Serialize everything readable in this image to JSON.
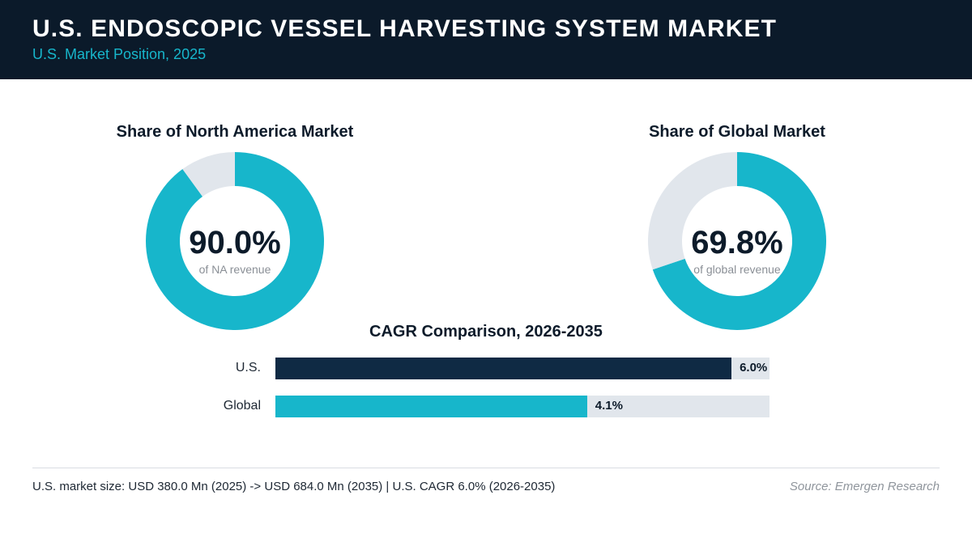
{
  "header": {
    "title": "U.S. ENDOSCOPIC VESSEL HARVESTING SYSTEM MARKET",
    "subtitle": "U.S. Market Position, 2025"
  },
  "colors": {
    "header_bg": "#0b1a2a",
    "accent_teal": "#17b6cb",
    "dark_navy": "#0f2a44",
    "track_gray": "#e1e6ec"
  },
  "chart_data": [
    {
      "type": "pie",
      "title": "Share of North America Market",
      "values": [
        90.0,
        10.0
      ],
      "center_label": "90.0%",
      "center_caption": "of NA revenue",
      "colors": [
        "#17b6cb",
        "#e1e6ec"
      ]
    },
    {
      "type": "pie",
      "title": "Share of Global Market",
      "values": [
        69.8,
        30.2
      ],
      "center_label": "69.8%",
      "center_caption": "of global revenue",
      "colors": [
        "#17b6cb",
        "#e1e6ec"
      ]
    },
    {
      "type": "bar",
      "orientation": "horizontal",
      "title": "CAGR Comparison, 2026-2035",
      "categories": [
        "U.S.",
        "Global"
      ],
      "values": [
        6.0,
        4.1
      ],
      "value_labels": [
        "6.0%",
        "4.1%"
      ],
      "xlim": [
        0,
        6.5
      ],
      "colors": [
        "#0f2a44",
        "#17b6cb"
      ]
    }
  ],
  "footer": {
    "note": "U.S. market size: USD 380.0 Mn (2025) -> USD 684.0 Mn (2035)  |  U.S. CAGR 6.0% (2026-2035)",
    "source": "Source: Emergen Research"
  }
}
